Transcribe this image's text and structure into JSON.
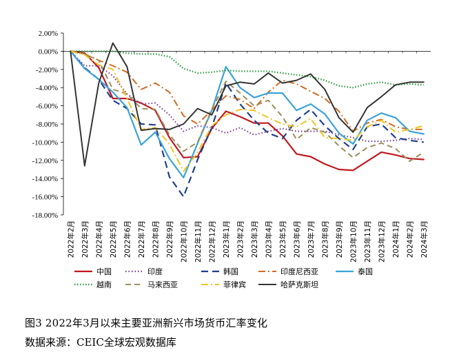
{
  "caption": "图3   2022年3月以来主要亚洲新兴市场货币汇率变化",
  "source": "数据来源：CEIC全球宏观数据库",
  "chart_data": {
    "type": "line",
    "x": [
      "2022年2月",
      "2022年3月",
      "2022年4月",
      "2022年5月",
      "2022年6月",
      "2022年7月",
      "2022年8月",
      "2022年9月",
      "2022年10月",
      "2022年11月",
      "2022年12月",
      "2023年1月",
      "2023年2月",
      "2023年3月",
      "2023年4月",
      "2023年5月",
      "2023年6月",
      "2023年7月",
      "2023年8月",
      "2023年9月",
      "2023年10月",
      "2023年11月",
      "2023年12月",
      "2024年1月",
      "2024年2月",
      "2024年3月"
    ],
    "ylim": [
      -18,
      2
    ],
    "yticks": [
      2,
      0,
      -2,
      -4,
      -6,
      -8,
      -10,
      -12,
      -14,
      -16,
      -18
    ],
    "ytick_labels": [
      "2.00%",
      "0.00%",
      "-2.00%",
      "-4.00%",
      "-6.00%",
      "-8.00%",
      "-10.00%",
      "-12.00%",
      "-14.00%",
      "-16.00%",
      "-18.00%"
    ],
    "grid": false,
    "legend_position": "bottom",
    "series": [
      {
        "name": "中国",
        "color": "#c0181f",
        "dash": "",
        "width": 2.2,
        "values": [
          0,
          -0.2,
          -1.8,
          -5.2,
          -5.2,
          -5.7,
          -6.5,
          -9.5,
          -11.7,
          -11.6,
          -8.5,
          -6.6,
          -7.2,
          -7.9,
          -7.9,
          -9.3,
          -11.3,
          -11.6,
          -12.4,
          -13.0,
          -13.1,
          -12.1,
          -11.1,
          -11.4,
          -11.8,
          -11.9
        ]
      },
      {
        "name": "印度",
        "color": "#7a3b9c",
        "dash": "1.5,3",
        "width": 2.2,
        "values": [
          0,
          -1.6,
          -1.6,
          -2.7,
          -4.7,
          -5.8,
          -5.7,
          -7.0,
          -8.8,
          -8.2,
          -8.4,
          -9.0,
          -8.4,
          -9.2,
          -8.8,
          -8.5,
          -8.8,
          -8.8,
          -8.8,
          -9.2,
          -9.5,
          -9.9,
          -9.9,
          -9.8,
          -9.6,
          -9.7
        ]
      },
      {
        "name": "韩国",
        "color": "#1f3e8c",
        "dash": "10,6",
        "width": 2.2,
        "values": [
          0,
          -1.8,
          -3.1,
          -5.4,
          -6.3,
          -8.0,
          -8.1,
          -13.8,
          -16.0,
          -11.9,
          -8.4,
          -3.5,
          -5.8,
          -7.6,
          -9.0,
          -9.6,
          -7.6,
          -6.4,
          -8.2,
          -9.6,
          -10.8,
          -8.3,
          -8.0,
          -9.5,
          -9.8,
          -10.0
        ]
      },
      {
        "name": "印度尼西亚",
        "color": "#d2691e",
        "dash": "10,4,2,4",
        "width": 2.0,
        "values": [
          0,
          -0.3,
          -1.0,
          -1.6,
          -2.3,
          -4.2,
          -3.5,
          -4.5,
          -7.1,
          -8.0,
          -6.5,
          -4.9,
          -5.3,
          -6.3,
          -4.5,
          -3.2,
          -3.6,
          -4.4,
          -5.2,
          -6.6,
          -8.8,
          -7.9,
          -7.5,
          -8.3,
          -8.6,
          -8.6
        ]
      },
      {
        "name": "泰国",
        "color": "#3aa3d9",
        "dash": "",
        "width": 2.2,
        "values": [
          0,
          -1.9,
          -3.1,
          -4.5,
          -6.2,
          -10.3,
          -8.9,
          -11.8,
          -13.9,
          -10.1,
          -6.5,
          -1.7,
          -4.0,
          -5.1,
          -4.6,
          -4.6,
          -6.5,
          -5.8,
          -6.9,
          -9.0,
          -10.2,
          -7.6,
          -6.8,
          -7.3,
          -8.8,
          -9.1
        ]
      },
      {
        "name": "越南",
        "color": "#2e9e44",
        "dash": "1.5,2.5",
        "width": 2.4,
        "values": [
          0,
          0,
          0,
          0,
          -0.2,
          -0.3,
          -0.3,
          -0.6,
          -1.9,
          -2.4,
          -2.3,
          -2.1,
          -2.2,
          -2.2,
          -2.2,
          -2.4,
          -2.6,
          -2.8,
          -3.2,
          -3.8,
          -4.0,
          -3.6,
          -3.4,
          -3.7,
          -3.6,
          -3.7
        ]
      },
      {
        "name": "马来西亚",
        "color": "#9c8e5a",
        "dash": "8,5",
        "width": 2.0,
        "values": [
          0,
          -0.3,
          -1.0,
          -4.2,
          -4.7,
          -6.3,
          -6.4,
          -9.2,
          -11.0,
          -10.0,
          -6.4,
          -3.3,
          -4.6,
          -6.0,
          -5.4,
          -7.2,
          -9.7,
          -8.4,
          -8.9,
          -10.4,
          -11.7,
          -10.6,
          -10.1,
          -10.7,
          -12.1,
          -11.1
        ]
      },
      {
        "name": "菲律宾",
        "color": "#f0c420",
        "dash": "10,4,2,4",
        "width": 2.0,
        "values": [
          0,
          -0.4,
          -1.5,
          -2.0,
          -5.2,
          -8.6,
          -8.4,
          -10.2,
          -13.2,
          -11.1,
          -8.2,
          -7.0,
          -6.4,
          -6.5,
          -7.3,
          -8.0,
          -8.3,
          -7.4,
          -9.5,
          -9.6,
          -9.8,
          -8.3,
          -7.6,
          -8.9,
          -8.6,
          -8.2
        ]
      },
      {
        "name": "哈萨克斯坦",
        "color": "#333333",
        "dash": "",
        "width": 2.0,
        "values": [
          0,
          -12.6,
          -3.5,
          0.9,
          -1.7,
          -8.7,
          -8.5,
          -8.6,
          -8.0,
          -6.3,
          -7.0,
          -3.8,
          -3.4,
          -3.6,
          -2.4,
          -3.5,
          -3.2,
          -2.5,
          -4.2,
          -7.3,
          -8.9,
          -6.2,
          -5.0,
          -3.7,
          -3.4,
          -3.4
        ]
      }
    ]
  }
}
